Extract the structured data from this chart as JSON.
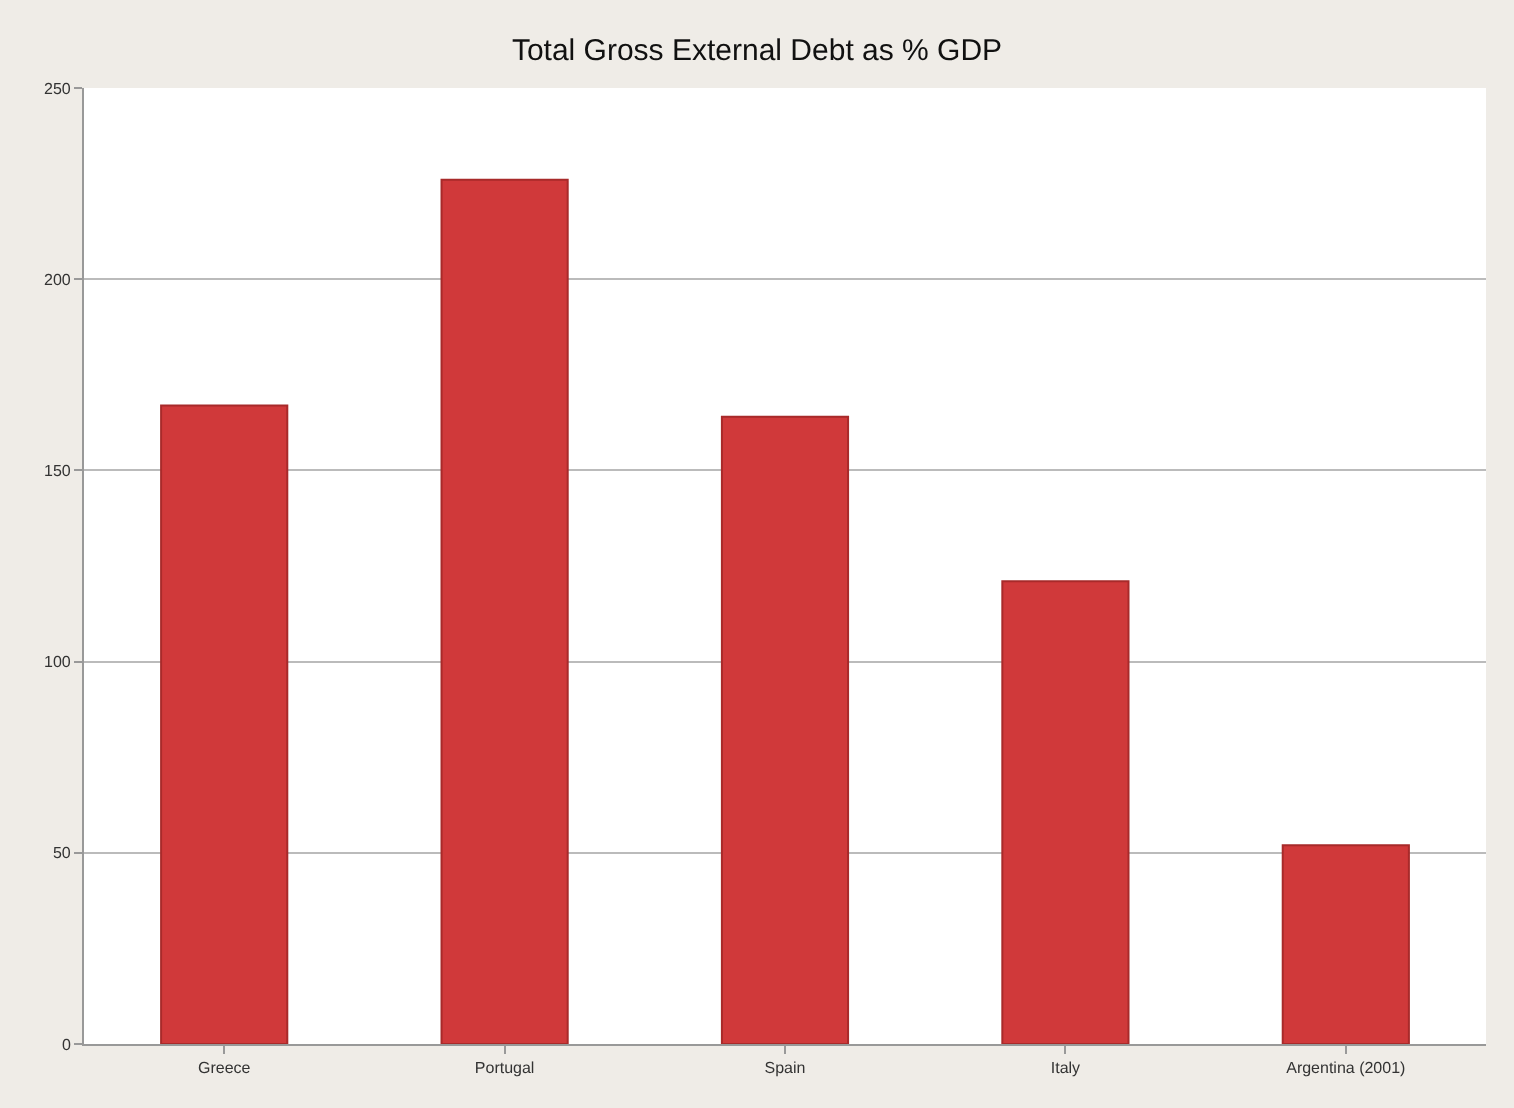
{
  "chart_data": {
    "type": "bar",
    "title": "Total Gross External Debt as % GDP",
    "categories": [
      "Greece",
      "Portugal",
      "Spain",
      "Italy",
      "Argentina (2001)"
    ],
    "values": [
      167,
      226,
      164,
      121,
      52
    ],
    "color": "#d0393a",
    "ylim": [
      0,
      250
    ],
    "yticks": [
      0,
      50,
      100,
      150,
      200,
      250
    ],
    "grid": "y"
  }
}
